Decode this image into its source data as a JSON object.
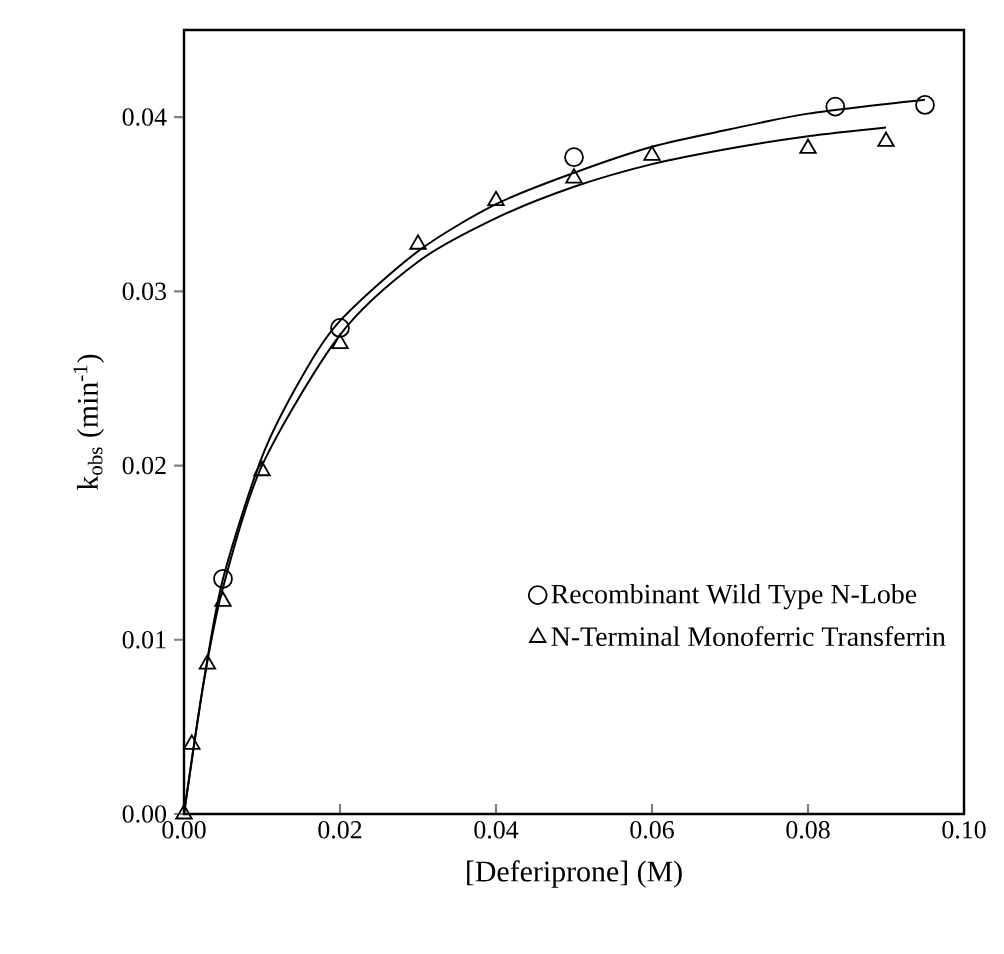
{
  "chart_data": {
    "type": "scatter",
    "xlabel": "[Deferiprone] (M)",
    "ylabel": "k$_{obs}$ (min$^{-1}$)",
    "xlim": [
      0,
      0.1
    ],
    "ylim": [
      0,
      0.045
    ],
    "xticks": [
      {
        "value": 0,
        "label": "0.00"
      },
      {
        "value": 0.02,
        "label": "0.02"
      },
      {
        "value": 0.04,
        "label": "0.04"
      },
      {
        "value": 0.06,
        "label": "0.06"
      },
      {
        "value": 0.08,
        "label": "0.08"
      },
      {
        "value": 0.1,
        "label": "0.10"
      }
    ],
    "yticks": [
      {
        "value": 0,
        "label": "0.00"
      },
      {
        "value": 0.01,
        "label": "0.01"
      },
      {
        "value": 0.02,
        "label": "0.02"
      },
      {
        "value": 0.03,
        "label": "0.03"
      },
      {
        "value": 0.04,
        "label": "0.04"
      }
    ],
    "legend": "right",
    "grid": false,
    "series": [
      {
        "name": "Recombinant Wild Type N-Lobe",
        "marker": "circle",
        "color": "#000000",
        "x": [
          0.005,
          0.02,
          0.05,
          0.0835,
          0.095
        ],
        "values": [
          0.0135,
          0.0279,
          0.0377,
          0.0406,
          0.0407
        ]
      },
      {
        "name": "N-Terminal Monoferric Transferrin",
        "marker": "triangle",
        "color": "#000000",
        "x": [
          0,
          0.001,
          0.003,
          0.005,
          0.01,
          0.02,
          0.03,
          0.04,
          0.05,
          0.06,
          0.08,
          0.09
        ],
        "values": [
          0,
          0.004,
          0.0086,
          0.0122,
          0.0197,
          0.027,
          0.0327,
          0.0352,
          0.0365,
          0.0378,
          0.0382,
          0.0386
        ]
      },
      {
        "type": "line",
        "marker": "none",
        "color": "#000000",
        "x": [
          0,
          0.0025,
          0.005,
          0.01,
          0.015,
          0.02,
          0.03,
          0.04,
          0.05,
          0.06,
          0.07,
          0.08,
          0.095
        ],
        "values": [
          0,
          0.0075,
          0.0135,
          0.0205,
          0.025,
          0.0283,
          0.0323,
          0.035,
          0.0368,
          0.0383,
          0.0393,
          0.0402,
          0.041
        ]
      },
      {
        "type": "line",
        "marker": "none",
        "color": "#000000",
        "x": [
          0,
          0.0025,
          0.005,
          0.01,
          0.02,
          0.03,
          0.04,
          0.05,
          0.06,
          0.07,
          0.08,
          0.09
        ],
        "values": [
          0,
          0.0075,
          0.013,
          0.02,
          0.0275,
          0.0317,
          0.0342,
          0.036,
          0.0373,
          0.0382,
          0.0389,
          0.0394
        ]
      }
    ]
  }
}
